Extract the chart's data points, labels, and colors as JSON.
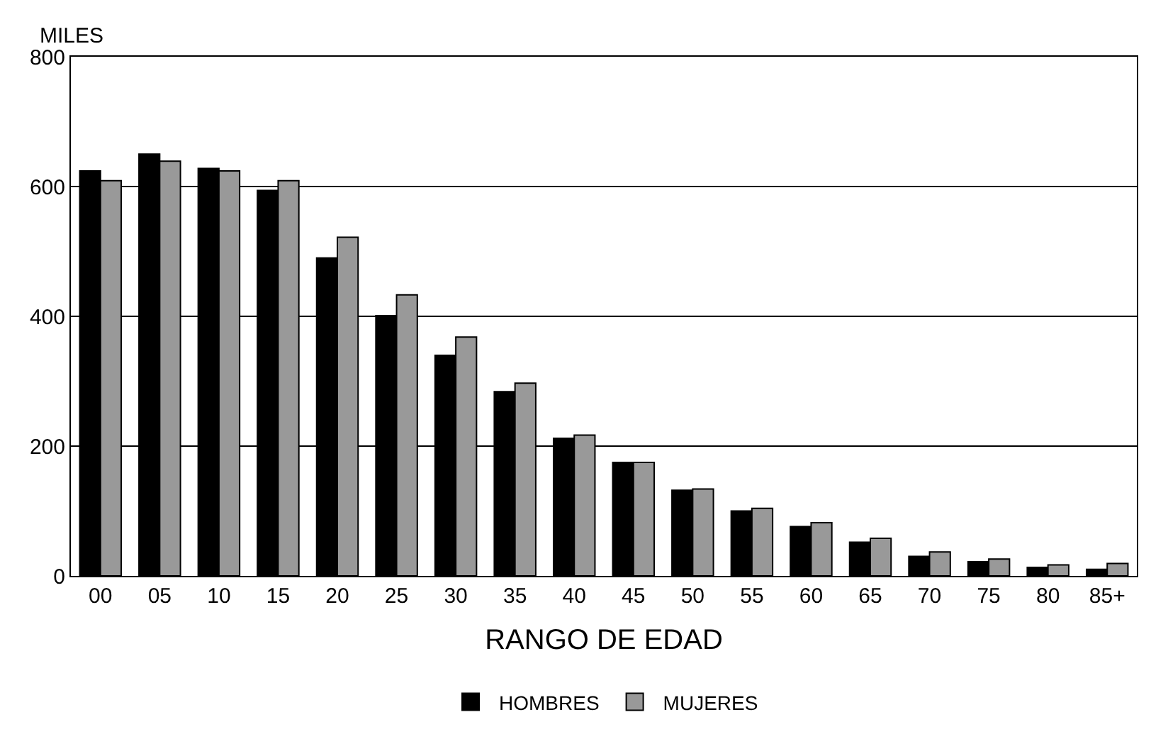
{
  "chart_data": {
    "type": "bar",
    "ylabel": "MILES",
    "xlabel": "RANGO DE EDAD",
    "categories": [
      "00",
      "05",
      "10",
      "15",
      "20",
      "25",
      "30",
      "35",
      "40",
      "45",
      "50",
      "55",
      "60",
      "65",
      "70",
      "75",
      "80",
      "85+"
    ],
    "series": [
      {
        "name": "HOMBRES",
        "color": "#000000",
        "values": [
          624,
          650,
          628,
          594,
          490,
          401,
          340,
          284,
          212,
          175,
          132,
          100,
          76,
          52,
          30,
          22,
          13,
          10
        ]
      },
      {
        "name": "MUJERES",
        "color": "#999999",
        "values": [
          609,
          639,
          624,
          609,
          522,
          433,
          368,
          297,
          217,
          175,
          134,
          104,
          82,
          58,
          37,
          26,
          17,
          19
        ]
      }
    ],
    "ylim": [
      0,
      800
    ],
    "yticks": [
      0,
      200,
      400,
      600,
      800
    ],
    "grid": "y",
    "legend": "bottom"
  }
}
